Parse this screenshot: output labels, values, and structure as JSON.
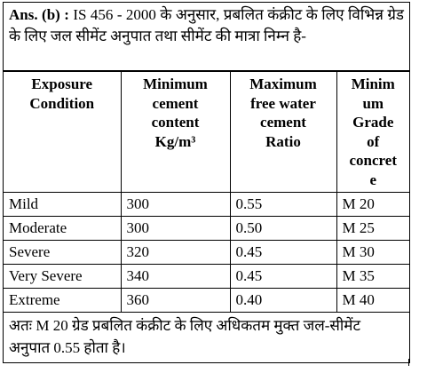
{
  "answer": {
    "label": "Ans. (b) :",
    "intro": "IS 456 - 2000 के अनुसार, प्रबलित कंक्रीट के लिए विभिन्न ग्रेड के लिए जल सीमेंट अनुपात तथा सीमेंट की मात्रा निम्न है-"
  },
  "table": {
    "headers": [
      [
        "Exposure",
        "Condition"
      ],
      [
        "Minimum",
        "cement",
        "content",
        "Kg/m³"
      ],
      [
        "Maximum",
        "free water",
        "cement",
        "Ratio"
      ],
      [
        "Minim",
        "um",
        "Grade",
        "of",
        "concret",
        "e"
      ]
    ],
    "rows": [
      [
        "Mild",
        "300",
        "0.55",
        "M 20"
      ],
      [
        "Moderate",
        "300",
        "0.50",
        "M 25"
      ],
      [
        "Severe",
        "320",
        "0.45",
        "M 30"
      ],
      [
        "Very Severe",
        "340",
        "0.45",
        "M 35"
      ],
      [
        "Extreme",
        "360",
        "0.40",
        "M 40"
      ]
    ]
  },
  "footer": "अतः M 20 ग्रेड प्रबलित कंक्रीट के लिए अधिकतम मुक्त जल-सीमेंट अनुपात 0.55 होता है।"
}
